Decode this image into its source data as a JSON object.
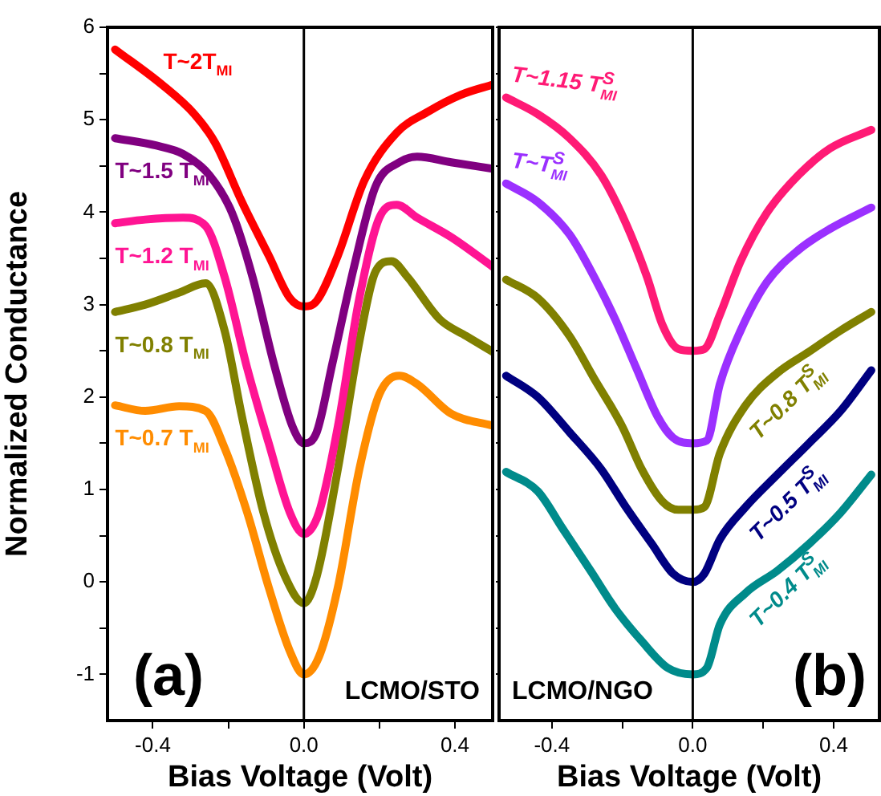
{
  "chart_data": [
    {
      "type": "line",
      "xlabel": "Bias Voltage (Volt)",
      "ylabel": "Normalized Conductance",
      "xlim": [
        -0.52,
        0.5
      ],
      "ylim": [
        -1.5,
        6
      ],
      "xticks": [
        {
          "value": -0.4,
          "label": "-0.4"
        },
        {
          "value": -0.2,
          "label": null
        },
        {
          "value": 0,
          "label": "0.0"
        },
        {
          "value": 0.2,
          "label": null
        },
        {
          "value": 0.4,
          "label": "0.4"
        }
      ],
      "yticks": [
        -1,
        {
          "value": -0.5,
          "label": null
        },
        0,
        {
          "value": 0.5,
          "label": null
        },
        1,
        {
          "value": 1.5,
          "label": null
        },
        2,
        {
          "value": 2.5,
          "label": null
        },
        3,
        {
          "value": 3.5,
          "label": null
        },
        4,
        {
          "value": 4.5,
          "label": null
        },
        5,
        {
          "value": 5.5,
          "label": null
        },
        6
      ],
      "grid": false,
      "legend": false,
      "marker": "none",
      "line_style": "solid",
      "ref_lines": [
        {
          "axis": "x",
          "value": 0,
          "color": "#000000"
        }
      ],
      "annotations": [
        "(a)",
        "LCMO/STO"
      ],
      "series": [
        {
          "name": "T~2T$_{MI}$",
          "color": "#ff0000",
          "x": [
            -0.5,
            -0.376,
            -0.29,
            -0.235,
            -0.164,
            -0.093,
            -0.037,
            0,
            0.034,
            0.09,
            0.16,
            0.246,
            0.33,
            0.416,
            0.5
          ],
          "values": [
            5.76,
            5.38,
            5.06,
            4.75,
            4.11,
            3.53,
            3.07,
            2.98,
            3.04,
            3.53,
            4.34,
            4.86,
            5.09,
            5.27,
            5.38
          ]
        },
        {
          "name": "T~1.5 T$_{MI}$",
          "color": "#800080",
          "x": [
            -0.5,
            -0.39,
            -0.32,
            -0.25,
            -0.19,
            -0.136,
            -0.08,
            -0.03,
            0,
            0.034,
            0.076,
            0.133,
            0.19,
            0.253,
            0.3,
            0.39,
            0.5
          ],
          "values": [
            4.8,
            4.72,
            4.63,
            4.4,
            3.99,
            3.3,
            2.37,
            1.68,
            1.5,
            1.62,
            2.37,
            3.41,
            4.28,
            4.54,
            4.6,
            4.54,
            4.47
          ]
        },
        {
          "name": "T~1.2 T$_{MI}$",
          "color": "#ff1493",
          "x": [
            -0.5,
            -0.42,
            -0.32,
            -0.26,
            -0.21,
            -0.15,
            -0.093,
            -0.037,
            0,
            0.04,
            0.09,
            0.147,
            0.2,
            0.246,
            0.3,
            0.39,
            0.5
          ],
          "values": [
            3.88,
            3.92,
            3.94,
            3.85,
            3.3,
            2.31,
            1.5,
            0.75,
            0.52,
            0.75,
            1.68,
            3.07,
            3.94,
            4.08,
            3.94,
            3.73,
            3.41
          ]
        },
        {
          "name": "T~0.8 T$_{MI}$",
          "color": "#808000",
          "x": [
            -0.5,
            -0.42,
            -0.33,
            -0.26,
            -0.21,
            -0.164,
            -0.107,
            -0.05,
            0,
            0.034,
            0.09,
            0.147,
            0.19,
            0.232,
            0.274,
            0.36,
            0.43,
            0.5
          ],
          "values": [
            2.92,
            3.0,
            3.13,
            3.23,
            2.72,
            1.79,
            0.75,
            0.06,
            -0.23,
            0.06,
            1.22,
            2.6,
            3.36,
            3.47,
            3.3,
            2.84,
            2.66,
            2.49
          ]
        },
        {
          "name": "T~0.7 T$_{MI}$",
          "color": "#ff8c00",
          "x": [
            -0.5,
            -0.42,
            -0.33,
            -0.26,
            -0.21,
            -0.15,
            -0.093,
            -0.037,
            0,
            0.04,
            0.09,
            0.147,
            0.2,
            0.253,
            0.3,
            0.39,
            0.5
          ],
          "values": [
            1.91,
            1.85,
            1.9,
            1.85,
            1.45,
            0.75,
            -0.06,
            -0.75,
            -1.0,
            -0.81,
            -0.06,
            1.22,
            2.03,
            2.23,
            2.14,
            1.82,
            1.69
          ]
        }
      ]
    },
    {
      "type": "line",
      "xlabel": "Bias Voltage (Volt)",
      "xlim": [
        -0.55,
        0.53
      ],
      "ylim": [
        -1.5,
        6
      ],
      "tick_labels": "x",
      "xticks": [
        {
          "value": -0.4,
          "label": "-0.4"
        },
        {
          "value": -0.2,
          "label": null
        },
        {
          "value": 0,
          "label": "0.0"
        },
        {
          "value": 0.2,
          "label": null
        },
        {
          "value": 0.4,
          "label": "0.4"
        }
      ],
      "yticks": [
        -1,
        {
          "value": -0.5,
          "label": null
        },
        0,
        {
          "value": 0.5,
          "label": null
        },
        1,
        {
          "value": 1.5,
          "label": null
        },
        2,
        {
          "value": 2.5,
          "label": null
        },
        3,
        {
          "value": 3.5,
          "label": null
        },
        4,
        {
          "value": 4.5,
          "label": null
        },
        5,
        {
          "value": 5.5,
          "label": null
        },
        6
      ],
      "grid": false,
      "legend": false,
      "marker": "none",
      "line_style": "solid",
      "ref_lines": [
        {
          "axis": "x",
          "value": 0,
          "color": "#000000"
        }
      ],
      "annotations": [
        "LCMO/NGO",
        "(b)"
      ],
      "series": [
        {
          "name": "T~1.15 T$^{S}$$_{MI}$",
          "color": "#ff1a75",
          "x": [
            -0.53,
            -0.44,
            -0.35,
            -0.26,
            -0.19,
            -0.13,
            -0.086,
            -0.041,
            0,
            0.033,
            0.077,
            0.136,
            0.21,
            0.3,
            0.39,
            0.507
          ],
          "values": [
            5.24,
            5.06,
            4.8,
            4.4,
            3.88,
            3.3,
            2.78,
            2.52,
            2.5,
            2.52,
            2.89,
            3.47,
            3.99,
            4.4,
            4.69,
            4.89
          ]
        },
        {
          "name": "T~T$^{S}$$_{MI}$",
          "color": "#9b30ff",
          "x": [
            -0.53,
            -0.44,
            -0.35,
            -0.28,
            -0.22,
            -0.16,
            -0.1,
            -0.056,
            0,
            0.04,
            0.077,
            0.136,
            0.21,
            0.3,
            0.39,
            0.507
          ],
          "values": [
            4.31,
            4.11,
            3.76,
            3.3,
            2.84,
            2.31,
            1.79,
            1.56,
            1.5,
            1.53,
            2.14,
            2.72,
            3.24,
            3.59,
            3.82,
            4.05
          ]
        },
        {
          "name": "T~0.8 T$^{S}$$_{MI}$",
          "color": "#808000",
          "x": [
            -0.53,
            -0.44,
            -0.35,
            -0.28,
            -0.2,
            -0.145,
            -0.086,
            -0.041,
            0,
            0.033,
            0.077,
            0.15,
            0.24,
            0.33,
            0.42,
            0.507
          ],
          "values": [
            3.27,
            3.07,
            2.66,
            2.2,
            1.68,
            1.22,
            0.87,
            0.78,
            0.78,
            0.81,
            1.39,
            1.91,
            2.26,
            2.49,
            2.72,
            2.92
          ]
        },
        {
          "name": "T~0.5 T$^{S}$$_{MI}$",
          "color": "#000080",
          "x": [
            -0.53,
            -0.44,
            -0.35,
            -0.26,
            -0.19,
            -0.116,
            -0.056,
            0,
            0.033,
            0.077,
            0.15,
            0.24,
            0.33,
            0.42,
            0.507
          ],
          "values": [
            2.23,
            2.0,
            1.62,
            1.22,
            0.81,
            0.41,
            0.09,
            0.0,
            0.09,
            0.46,
            0.81,
            1.16,
            1.5,
            1.85,
            2.29
          ]
        },
        {
          "name": "T~0.4 T$^{S}$$_{MI}$",
          "color": "#008b8b",
          "x": [
            -0.53,
            -0.44,
            -0.37,
            -0.29,
            -0.22,
            -0.145,
            -0.071,
            0,
            0.04,
            0.077,
            0.15,
            0.24,
            0.33,
            0.42,
            0.507
          ],
          "values": [
            1.19,
            0.98,
            0.58,
            0.12,
            -0.29,
            -0.64,
            -0.93,
            -1.0,
            -0.93,
            -0.46,
            -0.12,
            0.12,
            0.41,
            0.75,
            1.16
          ]
        }
      ]
    }
  ]
}
